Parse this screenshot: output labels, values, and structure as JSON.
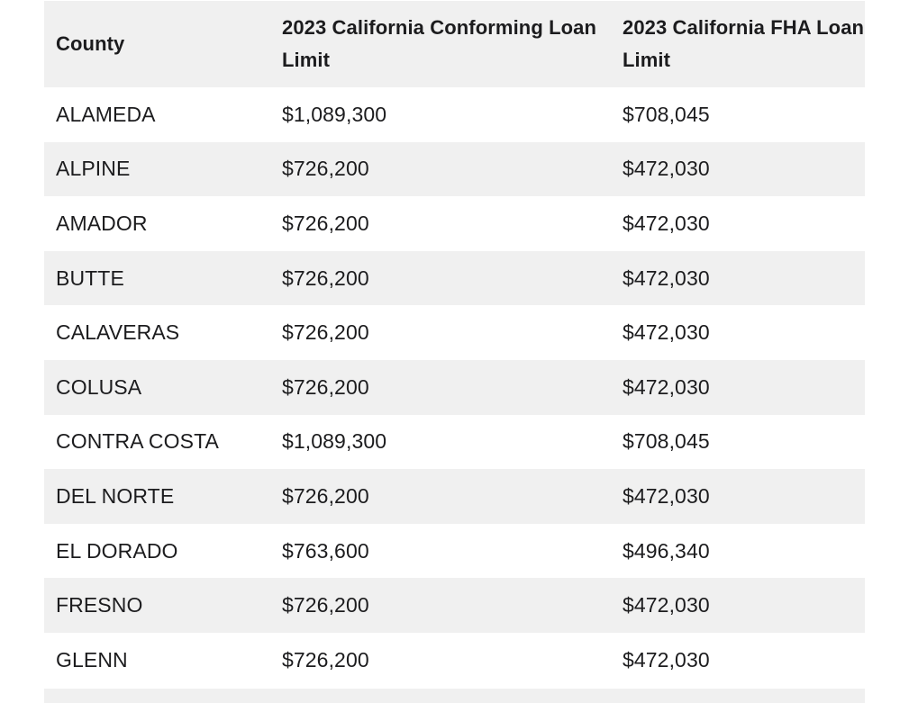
{
  "table": {
    "headers": [
      "County",
      "2023 California Conforming Loan Limit",
      "2023 California FHA Loan Limit"
    ],
    "rows": [
      [
        "ALAMEDA",
        "$1,089,300",
        "$708,045"
      ],
      [
        "ALPINE",
        "$726,200",
        "$472,030"
      ],
      [
        "AMADOR",
        "$726,200",
        "$472,030"
      ],
      [
        "BUTTE",
        "$726,200",
        "$472,030"
      ],
      [
        "CALAVERAS",
        "$726,200",
        "$472,030"
      ],
      [
        "COLUSA",
        "$726,200",
        "$472,030"
      ],
      [
        "CONTRA COSTA",
        "$1,089,300",
        "$708,045"
      ],
      [
        "DEL NORTE",
        "$726,200",
        "$472,030"
      ],
      [
        "EL DORADO",
        "$763,600",
        "$496,340"
      ],
      [
        "FRESNO",
        "$726,200",
        "$472,030"
      ],
      [
        "GLENN",
        "$726,200",
        "$472,030"
      ]
    ]
  },
  "colors": {
    "stripe": "#f0f0f0",
    "text": "#1c1c1e",
    "background": "#ffffff"
  }
}
